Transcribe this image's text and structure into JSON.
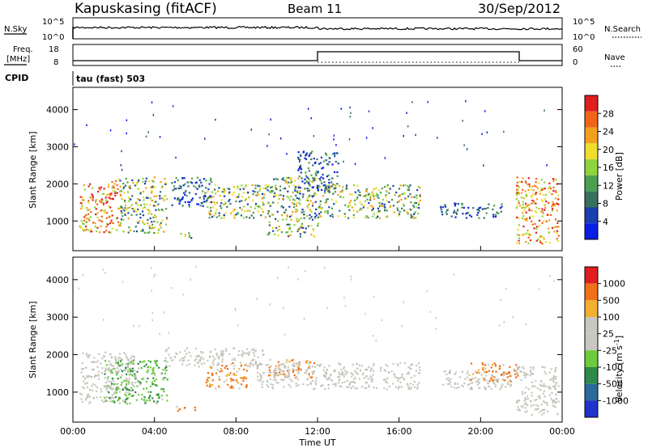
{
  "header": {
    "station": "Kapuskasing (fitACF)",
    "beam": "Beam 11",
    "date": "30/Sep/2012"
  },
  "strip_panels": {
    "nsky_label": "N.Sky",
    "nsearch_label": "N.Search",
    "noise_ticks": [
      "10^5",
      "10^0"
    ],
    "freq_label_line1": "Freq.",
    "freq_label_line2": "[MHz]",
    "freq_ticks": [
      "18",
      "8"
    ],
    "nave_label": "Nave",
    "nave_ticks": [
      "60",
      "0"
    ],
    "cpid_label": "CPID",
    "cpid_value": "tau (fast) 503"
  },
  "colorbars": {
    "power": {
      "title": "Power [dB]",
      "labels": [
        "28",
        "24",
        "20",
        "16",
        "12",
        "8",
        "4"
      ],
      "colors": [
        "#0a1ee6",
        "#1a3fb0",
        "#3a7060",
        "#4aa050",
        "#8fd43c",
        "#f0dc2a",
        "#f2a01c",
        "#f0641a",
        "#e01e1e"
      ]
    },
    "velocity": {
      "title": "Velocity [m s",
      "title_sup": "-1",
      "title_end": "]",
      "labels": [
        "1000",
        "500",
        "100",
        "25",
        "-25",
        "-100",
        "-500",
        "-1000"
      ],
      "colors": [
        "#2233cc",
        "#2a6a9a",
        "#2f8a4a",
        "#6ccc3c",
        "#c8c8c0",
        "#c8c8c0",
        "#f2b030",
        "#f07018",
        "#e01e1e"
      ]
    }
  },
  "chart_data": [
    {
      "type": "heatmap",
      "name": "power",
      "ylabel": "Slant Range [km]",
      "xlabel": "",
      "yticks": [
        1000,
        2000,
        3000,
        4000
      ],
      "ylim": [
        200,
        4600
      ],
      "xlim": [
        0,
        24
      ],
      "x_tick_labels": [
        "00:00",
        "04:00",
        "08:00",
        "12:00",
        "16:00",
        "20:00",
        "00:00"
      ],
      "regions": [
        {
          "t0": 0.3,
          "t1": 2.2,
          "r0": 700,
          "r1": 2100,
          "level": "strong"
        },
        {
          "t0": 2.2,
          "t1": 4.6,
          "r0": 700,
          "r1": 2200,
          "level": "medium"
        },
        {
          "t0": 4.8,
          "t1": 6.8,
          "r0": 1400,
          "r1": 2200,
          "level": "weak"
        },
        {
          "t0": 6.5,
          "t1": 9.5,
          "r0": 1100,
          "r1": 2000,
          "level": "medium"
        },
        {
          "t0": 9.5,
          "t1": 12.0,
          "r0": 600,
          "r1": 2200,
          "level": "medium"
        },
        {
          "t0": 11.0,
          "t1": 13.0,
          "r0": 1800,
          "r1": 2900,
          "level": "weak"
        },
        {
          "t0": 12.0,
          "t1": 17.0,
          "r0": 1100,
          "r1": 2000,
          "level": "medium"
        },
        {
          "t0": 18.0,
          "t1": 21.0,
          "r0": 1100,
          "r1": 1500,
          "level": "weak"
        },
        {
          "t0": 21.7,
          "t1": 23.8,
          "r0": 400,
          "r1": 2200,
          "level": "strong"
        },
        {
          "t0": 5.2,
          "t1": 6.0,
          "r0": 550,
          "r1": 700,
          "level": "medium"
        }
      ]
    },
    {
      "type": "heatmap",
      "name": "velocity",
      "ylabel": "Slant Range [km]",
      "xlabel": "Time UT",
      "yticks": [
        1000,
        2000,
        3000,
        4000
      ],
      "ylim": [
        200,
        4600
      ],
      "xlim": [
        0,
        24
      ],
      "x_tick_labels": [
        "00:00",
        "04:00",
        "08:00",
        "12:00",
        "16:00",
        "20:00",
        "00:00"
      ],
      "regions": [
        {
          "t0": 0.3,
          "t1": 3.0,
          "r0": 700,
          "r1": 2100,
          "level": "ground"
        },
        {
          "t0": 1.5,
          "t1": 4.6,
          "r0": 700,
          "r1": 1900,
          "level": "green"
        },
        {
          "t0": 4.5,
          "t1": 9.5,
          "r0": 1700,
          "r1": 2200,
          "level": "ground"
        },
        {
          "t0": 6.5,
          "t1": 8.5,
          "r0": 1100,
          "r1": 1800,
          "level": "orange"
        },
        {
          "t0": 9.5,
          "t1": 11.8,
          "r0": 1400,
          "r1": 1900,
          "level": "orange"
        },
        {
          "t0": 9.0,
          "t1": 17.0,
          "r0": 1100,
          "r1": 1800,
          "level": "ground"
        },
        {
          "t0": 18.0,
          "t1": 21.5,
          "r0": 1100,
          "r1": 1600,
          "level": "ground"
        },
        {
          "t0": 19.5,
          "t1": 21.8,
          "r0": 1300,
          "r1": 1800,
          "level": "orange"
        },
        {
          "t0": 21.7,
          "t1": 23.8,
          "r0": 400,
          "r1": 1700,
          "level": "ground"
        },
        {
          "t0": 5.0,
          "t1": 6.0,
          "r0": 500,
          "r1": 650,
          "level": "orange"
        }
      ]
    }
  ]
}
